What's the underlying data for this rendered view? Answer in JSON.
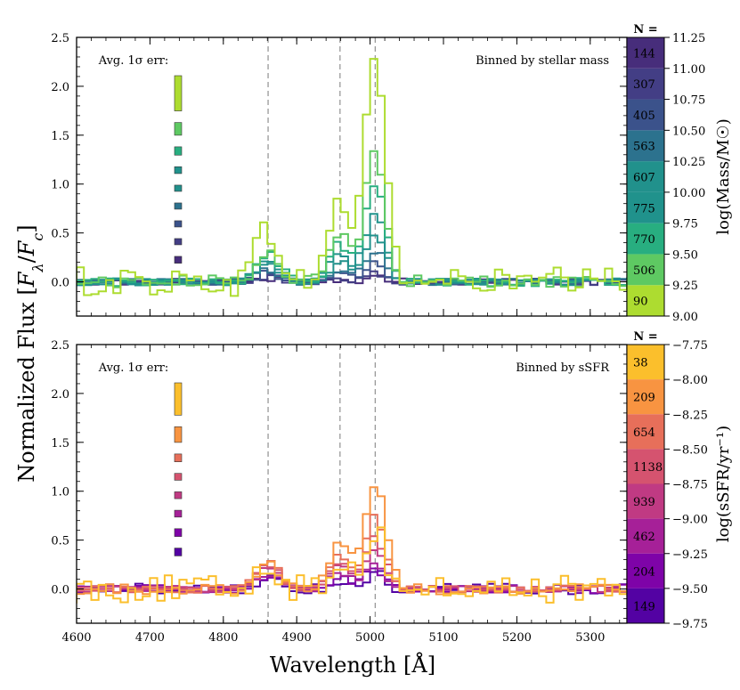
{
  "figure": {
    "ylabel": "Normalized Flux [F_λ / F_c]",
    "xlabel": "Wavelength [Å]",
    "xlim": [
      4600,
      5350
    ],
    "xticks": [
      4600,
      4700,
      4800,
      4900,
      5000,
      5100,
      5200,
      5300
    ],
    "ylim": [
      -0.35,
      2.5
    ],
    "yticks": [
      0.0,
      0.5,
      1.0,
      1.5,
      2.0,
      2.5
    ],
    "line_markers": [
      4861,
      4959,
      5007
    ]
  },
  "chart_data": [
    {
      "type": "line",
      "step": true,
      "title": "Binned by stellar mass",
      "err_label": "Avg. 1σ err:",
      "colorbar": {
        "header": "N =",
        "label": "log(Mass/M☉)",
        "range": [
          9.0,
          11.25
        ],
        "ticks": [
          9.0,
          9.25,
          9.5,
          9.75,
          10.0,
          10.25,
          10.5,
          10.75,
          11.0,
          11.25
        ],
        "tick_labels": [
          "9.00",
          "9.25",
          "9.50",
          "9.75",
          "10.00",
          "10.25",
          "10.50",
          "10.75",
          "11.00",
          "11.25"
        ]
      },
      "series": [
        {
          "name": "90",
          "bin": [
            9.0,
            9.25
          ],
          "color": "#addc30",
          "peak": 2.3,
          "hbeta": 0.52,
          "o3b": 0.85,
          "noise": 0.14,
          "err": 0.36
        },
        {
          "name": "506",
          "bin": [
            9.25,
            9.5
          ],
          "color": "#5ec962",
          "peak": 1.36,
          "hbeta": 0.33,
          "o3b": 0.5,
          "noise": 0.06,
          "err": 0.13
        },
        {
          "name": "770",
          "bin": [
            9.5,
            9.75
          ],
          "color": "#28ae80",
          "peak": 1.0,
          "hbeta": 0.28,
          "o3b": 0.38,
          "noise": 0.04,
          "err": 0.085
        },
        {
          "name": "775",
          "bin": [
            9.75,
            10.0
          ],
          "color": "#20928c",
          "peak": 0.72,
          "hbeta": 0.23,
          "o3b": 0.28,
          "noise": 0.035,
          "err": 0.07
        },
        {
          "name": "607",
          "bin": [
            10.0,
            10.25
          ],
          "color": "#21918c",
          "peak": 0.5,
          "hbeta": 0.18,
          "o3b": 0.2,
          "noise": 0.03,
          "err": 0.06
        },
        {
          "name": "563",
          "bin": [
            10.25,
            10.5
          ],
          "color": "#2c728e",
          "peak": 0.32,
          "hbeta": 0.13,
          "o3b": 0.13,
          "noise": 0.03,
          "err": 0.06
        },
        {
          "name": "405",
          "bin": [
            10.5,
            10.75
          ],
          "color": "#3b528b",
          "peak": 0.18,
          "hbeta": 0.09,
          "o3b": 0.08,
          "noise": 0.03,
          "err": 0.06
        },
        {
          "name": "307",
          "bin": [
            10.75,
            11.0
          ],
          "color": "#433e85",
          "peak": 0.08,
          "hbeta": 0.05,
          "o3b": 0.04,
          "noise": 0.03,
          "err": 0.06
        },
        {
          "name": "144",
          "bin": [
            11.0,
            11.25
          ],
          "color": "#472d7b",
          "peak": 0.04,
          "hbeta": 0.03,
          "o3b": 0.02,
          "noise": 0.03,
          "err": 0.07
        }
      ]
    },
    {
      "type": "line",
      "step": true,
      "title": "Binned by sSFR",
      "err_label": "Avg. 1σ err:",
      "colorbar": {
        "header": "N =",
        "label": "log(sSFR/yr⁻¹)",
        "range": [
          -9.75,
          -7.75
        ],
        "ticks": [
          -9.75,
          -9.5,
          -9.25,
          -9.0,
          -8.75,
          -8.5,
          -8.25,
          -8.0,
          -7.75
        ],
        "tick_labels": [
          "−9.75",
          "−9.50",
          "−9.25",
          "−9.00",
          "−8.75",
          "−8.50",
          "−8.25",
          "−8.00",
          "−7.75"
        ]
      },
      "series": [
        {
          "name": "38",
          "bin": [
            -8.0,
            -7.75
          ],
          "color": "#fbbf2c",
          "peak": 0.6,
          "hbeta": 0.25,
          "o3b": 0.3,
          "noise": 0.13,
          "err": 0.33
        },
        {
          "name": "209",
          "bin": [
            -8.25,
            -8.0
          ],
          "color": "#f89441",
          "peak": 1.1,
          "hbeta": 0.28,
          "o3b": 0.45,
          "noise": 0.05,
          "err": 0.16
        },
        {
          "name": "654",
          "bin": [
            -8.5,
            -8.25
          ],
          "color": "#e76f5a",
          "peak": 0.73,
          "hbeta": 0.26,
          "o3b": 0.36,
          "noise": 0.035,
          "err": 0.08
        },
        {
          "name": "1138",
          "bin": [
            -8.75,
            -8.5
          ],
          "color": "#d5536f",
          "peak": 0.52,
          "hbeta": 0.24,
          "o3b": 0.28,
          "noise": 0.03,
          "err": 0.07
        },
        {
          "name": "939",
          "bin": [
            -9.0,
            -8.75
          ],
          "color": "#c03a83",
          "peak": 0.38,
          "hbeta": 0.2,
          "o3b": 0.22,
          "noise": 0.03,
          "err": 0.07
        },
        {
          "name": "462",
          "bin": [
            -9.25,
            -9.0
          ],
          "color": "#a62098",
          "peak": 0.25,
          "hbeta": 0.16,
          "o3b": 0.16,
          "noise": 0.03,
          "err": 0.07
        },
        {
          "name": "204",
          "bin": [
            -9.5,
            -9.25
          ],
          "color": "#7e03a8",
          "peak": 0.2,
          "hbeta": 0.12,
          "o3b": 0.12,
          "noise": 0.04,
          "err": 0.08
        },
        {
          "name": "149",
          "bin": [
            -9.75,
            -9.5
          ],
          "color": "#5302a3",
          "peak": 0.17,
          "hbeta": 0.1,
          "o3b": 0.1,
          "noise": 0.05,
          "err": 0.08
        }
      ]
    }
  ]
}
